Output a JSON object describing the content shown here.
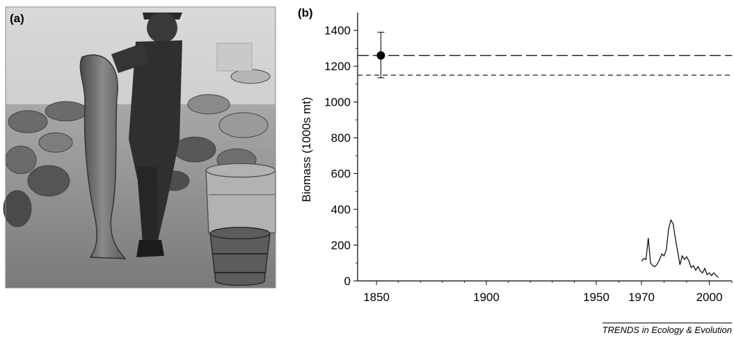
{
  "panel_a": {
    "label": "(a)",
    "image_description_icon": "fisherman-holding-large-cod-photo-icon"
  },
  "panel_b": {
    "label": "(b)"
  },
  "credit": "TRENDS in Ecology & Evolution",
  "chart_data": {
    "type": "line",
    "title": "",
    "xlabel": "",
    "ylabel": "Biomass (1000s mt)",
    "x_ticks": [
      1850,
      1900,
      1950,
      1970,
      2000
    ],
    "y_ticks": [
      0,
      200,
      400,
      600,
      800,
      1000,
      1200,
      1400
    ],
    "xlim": [
      1843,
      2010
    ],
    "ylim": [
      0,
      1500
    ],
    "x_axis_note": "broken scale: 1843–1950 compressed, 1950–2010 expanded",
    "grid": false,
    "historical_point": {
      "x": 1852,
      "y": 1260,
      "error_low": 1135,
      "error_high": 1390
    },
    "reference_lines": [
      {
        "style": "long-dash",
        "y": 1260
      },
      {
        "style": "short-dash",
        "y": 1150
      }
    ],
    "series": [
      {
        "x": [
          1970,
          1971,
          1972,
          1973,
          1974,
          1975,
          1976,
          1977,
          1978,
          1979,
          1980,
          1981,
          1982,
          1983,
          1984,
          1985,
          1986,
          1987,
          1988,
          1989,
          1990,
          1991,
          1992,
          1993,
          1994,
          1995,
          1996,
          1997,
          1998,
          1999,
          2000,
          2001,
          2002,
          2003,
          2004
        ],
        "y": [
          110,
          125,
          120,
          240,
          100,
          85,
          80,
          95,
          120,
          150,
          140,
          175,
          290,
          340,
          320,
          235,
          165,
          90,
          140,
          120,
          135,
          110,
          75,
          85,
          60,
          80,
          55,
          45,
          70,
          35,
          45,
          30,
          45,
          30,
          20
        ]
      }
    ]
  }
}
